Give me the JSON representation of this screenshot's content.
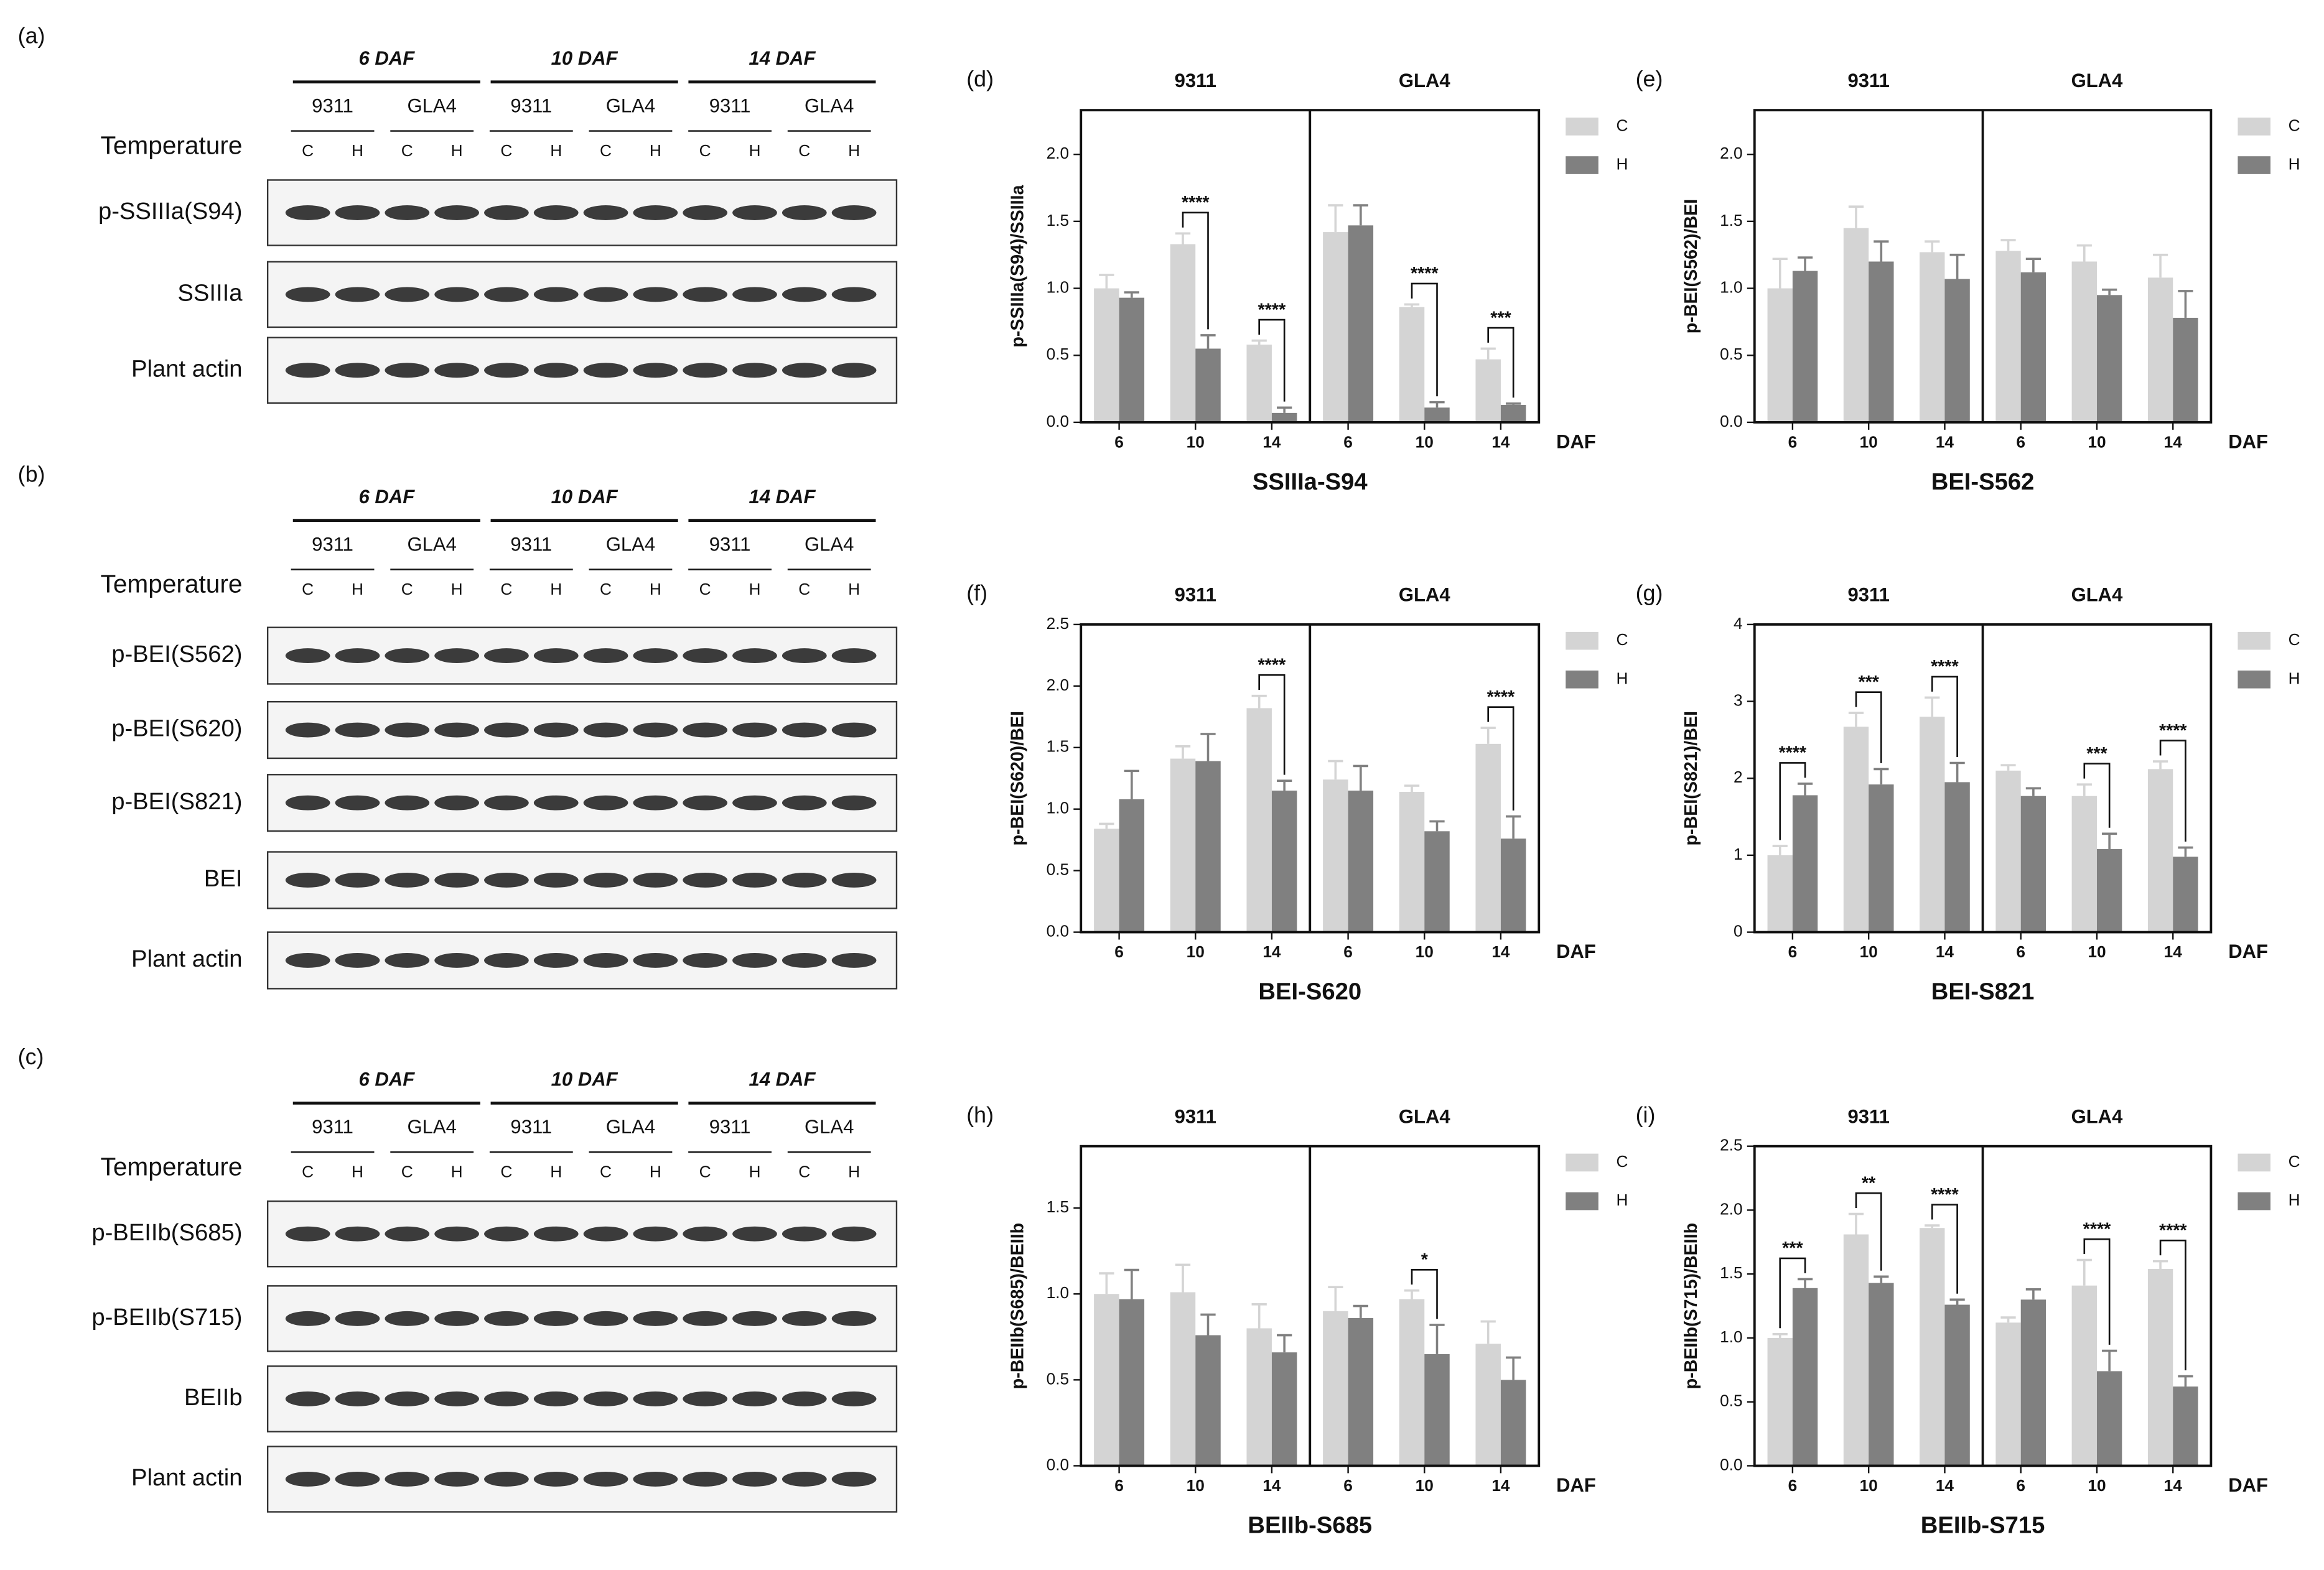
{
  "blots": [
    {
      "label": "(a)",
      "groups": [
        "6 DAF",
        "10 DAF",
        "14 DAF"
      ],
      "genotypes": [
        "9311",
        "GLA4",
        "9311",
        "GLA4",
        "9311",
        "GLA4"
      ],
      "temperature_label": "Temperature",
      "temperatures": [
        "C",
        "H",
        "C",
        "H",
        "C",
        "H",
        "C",
        "H",
        "C",
        "H",
        "C",
        "H"
      ],
      "rows": [
        "p-SSIIIa(S94)",
        "SSIIIa",
        "Plant actin"
      ]
    },
    {
      "label": "(b)",
      "groups": [
        "6 DAF",
        "10 DAF",
        "14 DAF"
      ],
      "genotypes": [
        "9311",
        "GLA4",
        "9311",
        "GLA4",
        "9311",
        "GLA4"
      ],
      "temperature_label": "Temperature",
      "temperatures": [
        "C",
        "H",
        "C",
        "H",
        "C",
        "H",
        "C",
        "H",
        "C",
        "H",
        "C",
        "H"
      ],
      "rows": [
        "p-BEI(S562)",
        "p-BEI(S620)",
        "p-BEI(S821)",
        "BEI",
        "Plant actin"
      ]
    },
    {
      "label": "(c)",
      "groups": [
        "6 DAF",
        "10 DAF",
        "14 DAF"
      ],
      "genotypes": [
        "9311",
        "GLA4",
        "9311",
        "GLA4",
        "9311",
        "GLA4"
      ],
      "temperature_label": "Temperature",
      "temperatures": [
        "C",
        "H",
        "C",
        "H",
        "C",
        "H",
        "C",
        "H",
        "C",
        "H",
        "C",
        "H"
      ],
      "rows": [
        "p-BEIIb(S685)",
        "p-BEIIb(S715)",
        "BEIIb",
        "Plant actin"
      ]
    }
  ],
  "chart_data": [
    {
      "type": "bar",
      "label": "(d)",
      "title": "SSIIIa-S94",
      "ylabel": "p-SSIIIa(S94)/SSIIIa",
      "xlabel": "DAF",
      "groups": [
        "9311",
        "GLA4"
      ],
      "categories": [
        "6",
        "10",
        "14",
        "6",
        "10",
        "14"
      ],
      "series": [
        {
          "name": "C",
          "color": "#d4d4d4",
          "values": [
            1.0,
            1.33,
            0.58,
            1.42,
            0.86,
            0.47
          ],
          "errors": [
            0.1,
            0.08,
            0.03,
            0.2,
            0.02,
            0.08
          ]
        },
        {
          "name": "H",
          "color": "#808080",
          "values": [
            0.93,
            0.55,
            0.07,
            1.47,
            0.11,
            0.13
          ],
          "errors": [
            0.04,
            0.1,
            0.04,
            0.15,
            0.04,
            0.01
          ]
        }
      ],
      "significance": [
        null,
        "****",
        "****",
        null,
        "****",
        "***"
      ],
      "ylim": [
        0,
        2.33
      ],
      "yticks": [
        {
          "value": 0,
          "label": "0.0"
        },
        {
          "value": 0.5,
          "label": "0.5"
        },
        {
          "value": 1,
          "label": "1.0"
        },
        {
          "value": 1.5,
          "label": "1.5"
        },
        {
          "value": 2,
          "label": "2.0"
        }
      ]
    },
    {
      "type": "bar",
      "label": "(e)",
      "title": "BEI-S562",
      "ylabel": "p-BEI(S562)/BEI",
      "xlabel": "DAF",
      "groups": [
        "9311",
        "GLA4"
      ],
      "categories": [
        "6",
        "10",
        "14",
        "6",
        "10",
        "14"
      ],
      "series": [
        {
          "name": "C",
          "color": "#d4d4d4",
          "values": [
            1.0,
            1.45,
            1.27,
            1.28,
            1.2,
            1.08
          ],
          "errors": [
            0.22,
            0.16,
            0.08,
            0.08,
            0.12,
            0.17
          ]
        },
        {
          "name": "H",
          "color": "#808080",
          "values": [
            1.13,
            1.2,
            1.07,
            1.12,
            0.95,
            0.78
          ],
          "errors": [
            0.1,
            0.15,
            0.18,
            0.1,
            0.04,
            0.2
          ]
        }
      ],
      "significance": [
        null,
        null,
        null,
        null,
        null,
        null
      ],
      "ylim": [
        0,
        2.33
      ],
      "yticks": [
        {
          "value": 0,
          "label": "0.0"
        },
        {
          "value": 0.5,
          "label": "0.5"
        },
        {
          "value": 1,
          "label": "1.0"
        },
        {
          "value": 1.5,
          "label": "1.5"
        },
        {
          "value": 2,
          "label": "2.0"
        }
      ]
    },
    {
      "type": "bar",
      "label": "(f)",
      "title": "BEI-S620",
      "ylabel": "p-BEI(S620)/BEI",
      "xlabel": "DAF",
      "groups": [
        "9311",
        "GLA4"
      ],
      "categories": [
        "6",
        "10",
        "14",
        "6",
        "10",
        "14"
      ],
      "series": [
        {
          "name": "C",
          "color": "#d4d4d4",
          "values": [
            0.84,
            1.41,
            1.82,
            1.24,
            1.14,
            1.53
          ],
          "errors": [
            0.04,
            0.1,
            0.1,
            0.15,
            0.05,
            0.13
          ]
        },
        {
          "name": "H",
          "color": "#808080",
          "values": [
            1.08,
            1.39,
            1.15,
            1.15,
            0.82,
            0.76
          ],
          "errors": [
            0.23,
            0.22,
            0.08,
            0.2,
            0.08,
            0.18
          ]
        }
      ],
      "significance": [
        null,
        null,
        "****",
        null,
        null,
        "****"
      ],
      "ylim": [
        0,
        2.5
      ],
      "yticks": [
        {
          "value": 0,
          "label": "0.0"
        },
        {
          "value": 0.5,
          "label": "0.5"
        },
        {
          "value": 1,
          "label": "1.0"
        },
        {
          "value": 1.5,
          "label": "1.5"
        },
        {
          "value": 2,
          "label": "2.0"
        },
        {
          "value": 2.5,
          "label": "2.5"
        }
      ]
    },
    {
      "type": "bar",
      "label": "(g)",
      "title": "BEI-S821",
      "ylabel": "p-BEI(S821)/BEI",
      "xlabel": "DAF",
      "groups": [
        "9311",
        "GLA4"
      ],
      "categories": [
        "6",
        "10",
        "14",
        "6",
        "10",
        "14"
      ],
      "series": [
        {
          "name": "C",
          "color": "#d4d4d4",
          "values": [
            1.0,
            2.67,
            2.8,
            2.1,
            1.77,
            2.12
          ],
          "errors": [
            0.12,
            0.18,
            0.25,
            0.07,
            0.15,
            0.1
          ]
        },
        {
          "name": "H",
          "color": "#808080",
          "values": [
            1.78,
            1.92,
            1.95,
            1.77,
            1.08,
            0.98
          ],
          "errors": [
            0.15,
            0.2,
            0.25,
            0.1,
            0.2,
            0.12
          ]
        }
      ],
      "significance": [
        "****",
        "***",
        "****",
        null,
        "***",
        "****"
      ],
      "ylim": [
        0,
        4
      ],
      "yticks": [
        0,
        1,
        2,
        3,
        4
      ]
    },
    {
      "type": "bar",
      "label": "(h)",
      "title": "BEIIb-S685",
      "ylabel": "p-BEIIb(S685)/BEIIb",
      "xlabel": "DAF",
      "groups": [
        "9311",
        "GLA4"
      ],
      "categories": [
        "6",
        "10",
        "14",
        "6",
        "10",
        "14"
      ],
      "series": [
        {
          "name": "C",
          "color": "#d4d4d4",
          "values": [
            1.0,
            1.01,
            0.8,
            0.9,
            0.97,
            0.71
          ],
          "errors": [
            0.12,
            0.16,
            0.14,
            0.14,
            0.05,
            0.13
          ]
        },
        {
          "name": "H",
          "color": "#808080",
          "values": [
            0.97,
            0.76,
            0.66,
            0.86,
            0.65,
            0.5
          ],
          "errors": [
            0.17,
            0.12,
            0.1,
            0.07,
            0.17,
            0.13
          ]
        }
      ],
      "significance": [
        null,
        null,
        null,
        null,
        "*",
        null
      ],
      "ylim": [
        0,
        1.86
      ],
      "yticks": [
        {
          "value": 0,
          "label": "0.0"
        },
        {
          "value": 0.5,
          "label": "0.5"
        },
        {
          "value": 1,
          "label": "1.0"
        },
        {
          "value": 1.5,
          "label": "1.5"
        }
      ]
    },
    {
      "type": "bar",
      "label": "(i)",
      "title": "BEIIb-S715",
      "ylabel": "p-BEIIb(S715)/BEIIb",
      "xlabel": "DAF",
      "groups": [
        "9311",
        "GLA4"
      ],
      "categories": [
        "6",
        "10",
        "14",
        "6",
        "10",
        "14"
      ],
      "series": [
        {
          "name": "C",
          "color": "#d4d4d4",
          "values": [
            1.0,
            1.81,
            1.86,
            1.12,
            1.41,
            1.54
          ],
          "errors": [
            0.03,
            0.16,
            0.02,
            0.04,
            0.2,
            0.06
          ]
        },
        {
          "name": "H",
          "color": "#808080",
          "values": [
            1.39,
            1.43,
            1.26,
            1.3,
            0.74,
            0.62
          ],
          "errors": [
            0.07,
            0.05,
            0.04,
            0.08,
            0.16,
            0.08
          ]
        }
      ],
      "significance": [
        "***",
        "**",
        "****",
        null,
        "****",
        "****"
      ],
      "ylim": [
        0,
        2.5
      ],
      "yticks": [
        {
          "value": 0,
          "label": "0.0"
        },
        {
          "value": 0.5,
          "label": "0.5"
        },
        {
          "value": 1,
          "label": "1.0"
        },
        {
          "value": 1.5,
          "label": "1.5"
        },
        {
          "value": 2,
          "label": "2.0"
        },
        {
          "value": 2.5,
          "label": "2.5"
        }
      ]
    }
  ]
}
